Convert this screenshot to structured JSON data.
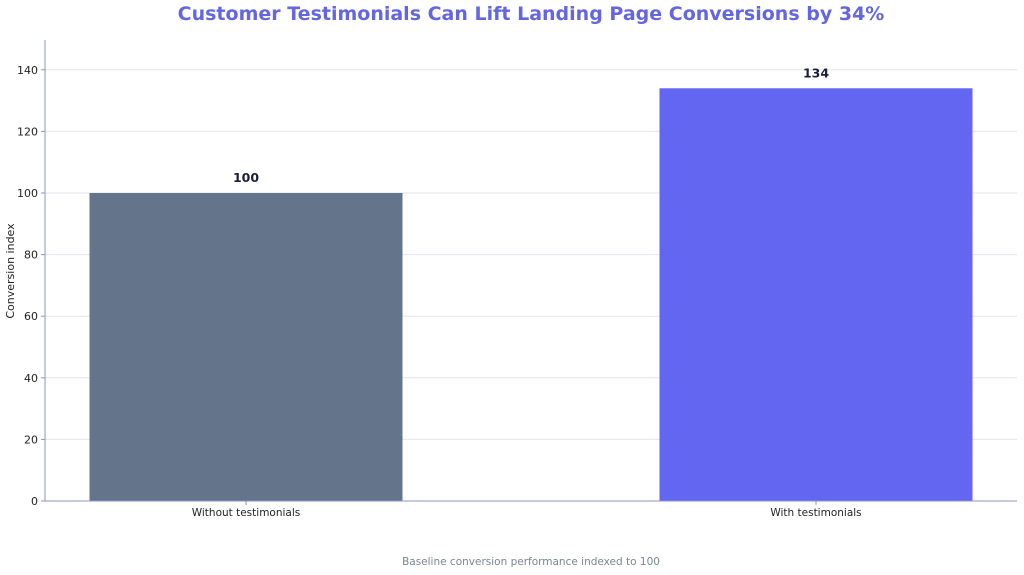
{
  "chart_data": {
    "type": "bar",
    "title": "Customer Testimonials Can Lift Landing Page Conversions by 34%",
    "caption": "Baseline conversion performance indexed to 100",
    "xlabel": "",
    "ylabel": "Conversion index",
    "categories": [
      "Without testimonials",
      "With testimonials"
    ],
    "values": [
      100,
      134
    ],
    "data_labels": [
      "100",
      "134"
    ],
    "bar_colors": [
      "#64748b",
      "#6366f1"
    ],
    "ylim": [
      0,
      150
    ],
    "yticks": [
      0,
      20,
      40,
      60,
      80,
      100,
      120,
      140
    ],
    "grid": true,
    "title_color": "#6366e0"
  }
}
